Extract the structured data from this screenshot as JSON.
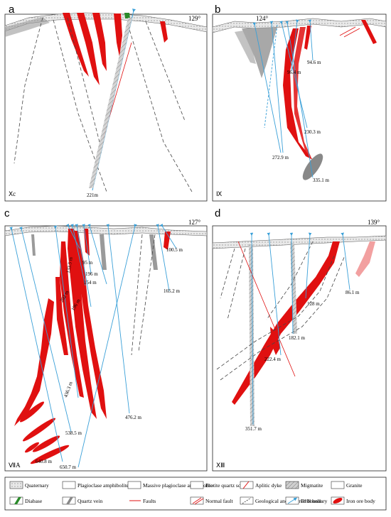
{
  "colors": {
    "ore": "#e01010",
    "drill": "#3aa0d8",
    "fault": "#e01010",
    "frame": "#222222",
    "gray": "#9a9a9a",
    "dash": "#444444"
  },
  "panels": {
    "a": {
      "letter": "a",
      "bearing": "129°",
      "section": "Ⅹc",
      "holes": [
        "221m"
      ]
    },
    "b": {
      "letter": "b",
      "bearing": "124°",
      "section": "Ⅸ",
      "holes": [
        "94.6 m",
        "96.4 m",
        "230.3 m",
        "272.9 m",
        "335.1 m"
      ]
    },
    "c": {
      "letter": "c",
      "bearing": "127°",
      "section": "ⅦA",
      "holes": [
        "133.5 m",
        "95 m",
        "196 m",
        "154 m",
        "202 m",
        "196 m",
        "100.5 m",
        "165.2 m",
        "476.2 m",
        "436.3 m",
        "538.5 m",
        "640.8 m",
        "650.7 m"
      ]
    },
    "d": {
      "letter": "d",
      "bearing": "139°",
      "section": "ⅩⅢ",
      "holes": [
        "86.1 m",
        "128 m",
        "182.1 m",
        "222.4 m",
        "351.7 m"
      ]
    }
  },
  "legend": [
    {
      "key": "quaternary",
      "label": "Quaternary"
    },
    {
      "key": "plag-amph",
      "label": "Plagioclase amphibolite"
    },
    {
      "key": "massive-plag-amph",
      "label": "Massive plagioclase amphibolite"
    },
    {
      "key": "biotite-schist",
      "label": "Biotite quartz schist"
    },
    {
      "key": "aplitic-dyke",
      "label": "Aplitic dyke"
    },
    {
      "key": "migmatite",
      "label": "Migmatite"
    },
    {
      "key": "granite",
      "label": "Granite"
    },
    {
      "key": "diabase",
      "label": "Diabase"
    },
    {
      "key": "quartz-vein",
      "label": "Quartz vein"
    },
    {
      "key": "faults",
      "label": "Faults"
    },
    {
      "key": "normal-fault",
      "label": "Normal fault"
    },
    {
      "key": "boundary",
      "label": "Geological and inferred boundary"
    },
    {
      "key": "drill-hole",
      "label": "Drill hole"
    },
    {
      "key": "iron-ore",
      "label": "Iron ore body"
    }
  ]
}
